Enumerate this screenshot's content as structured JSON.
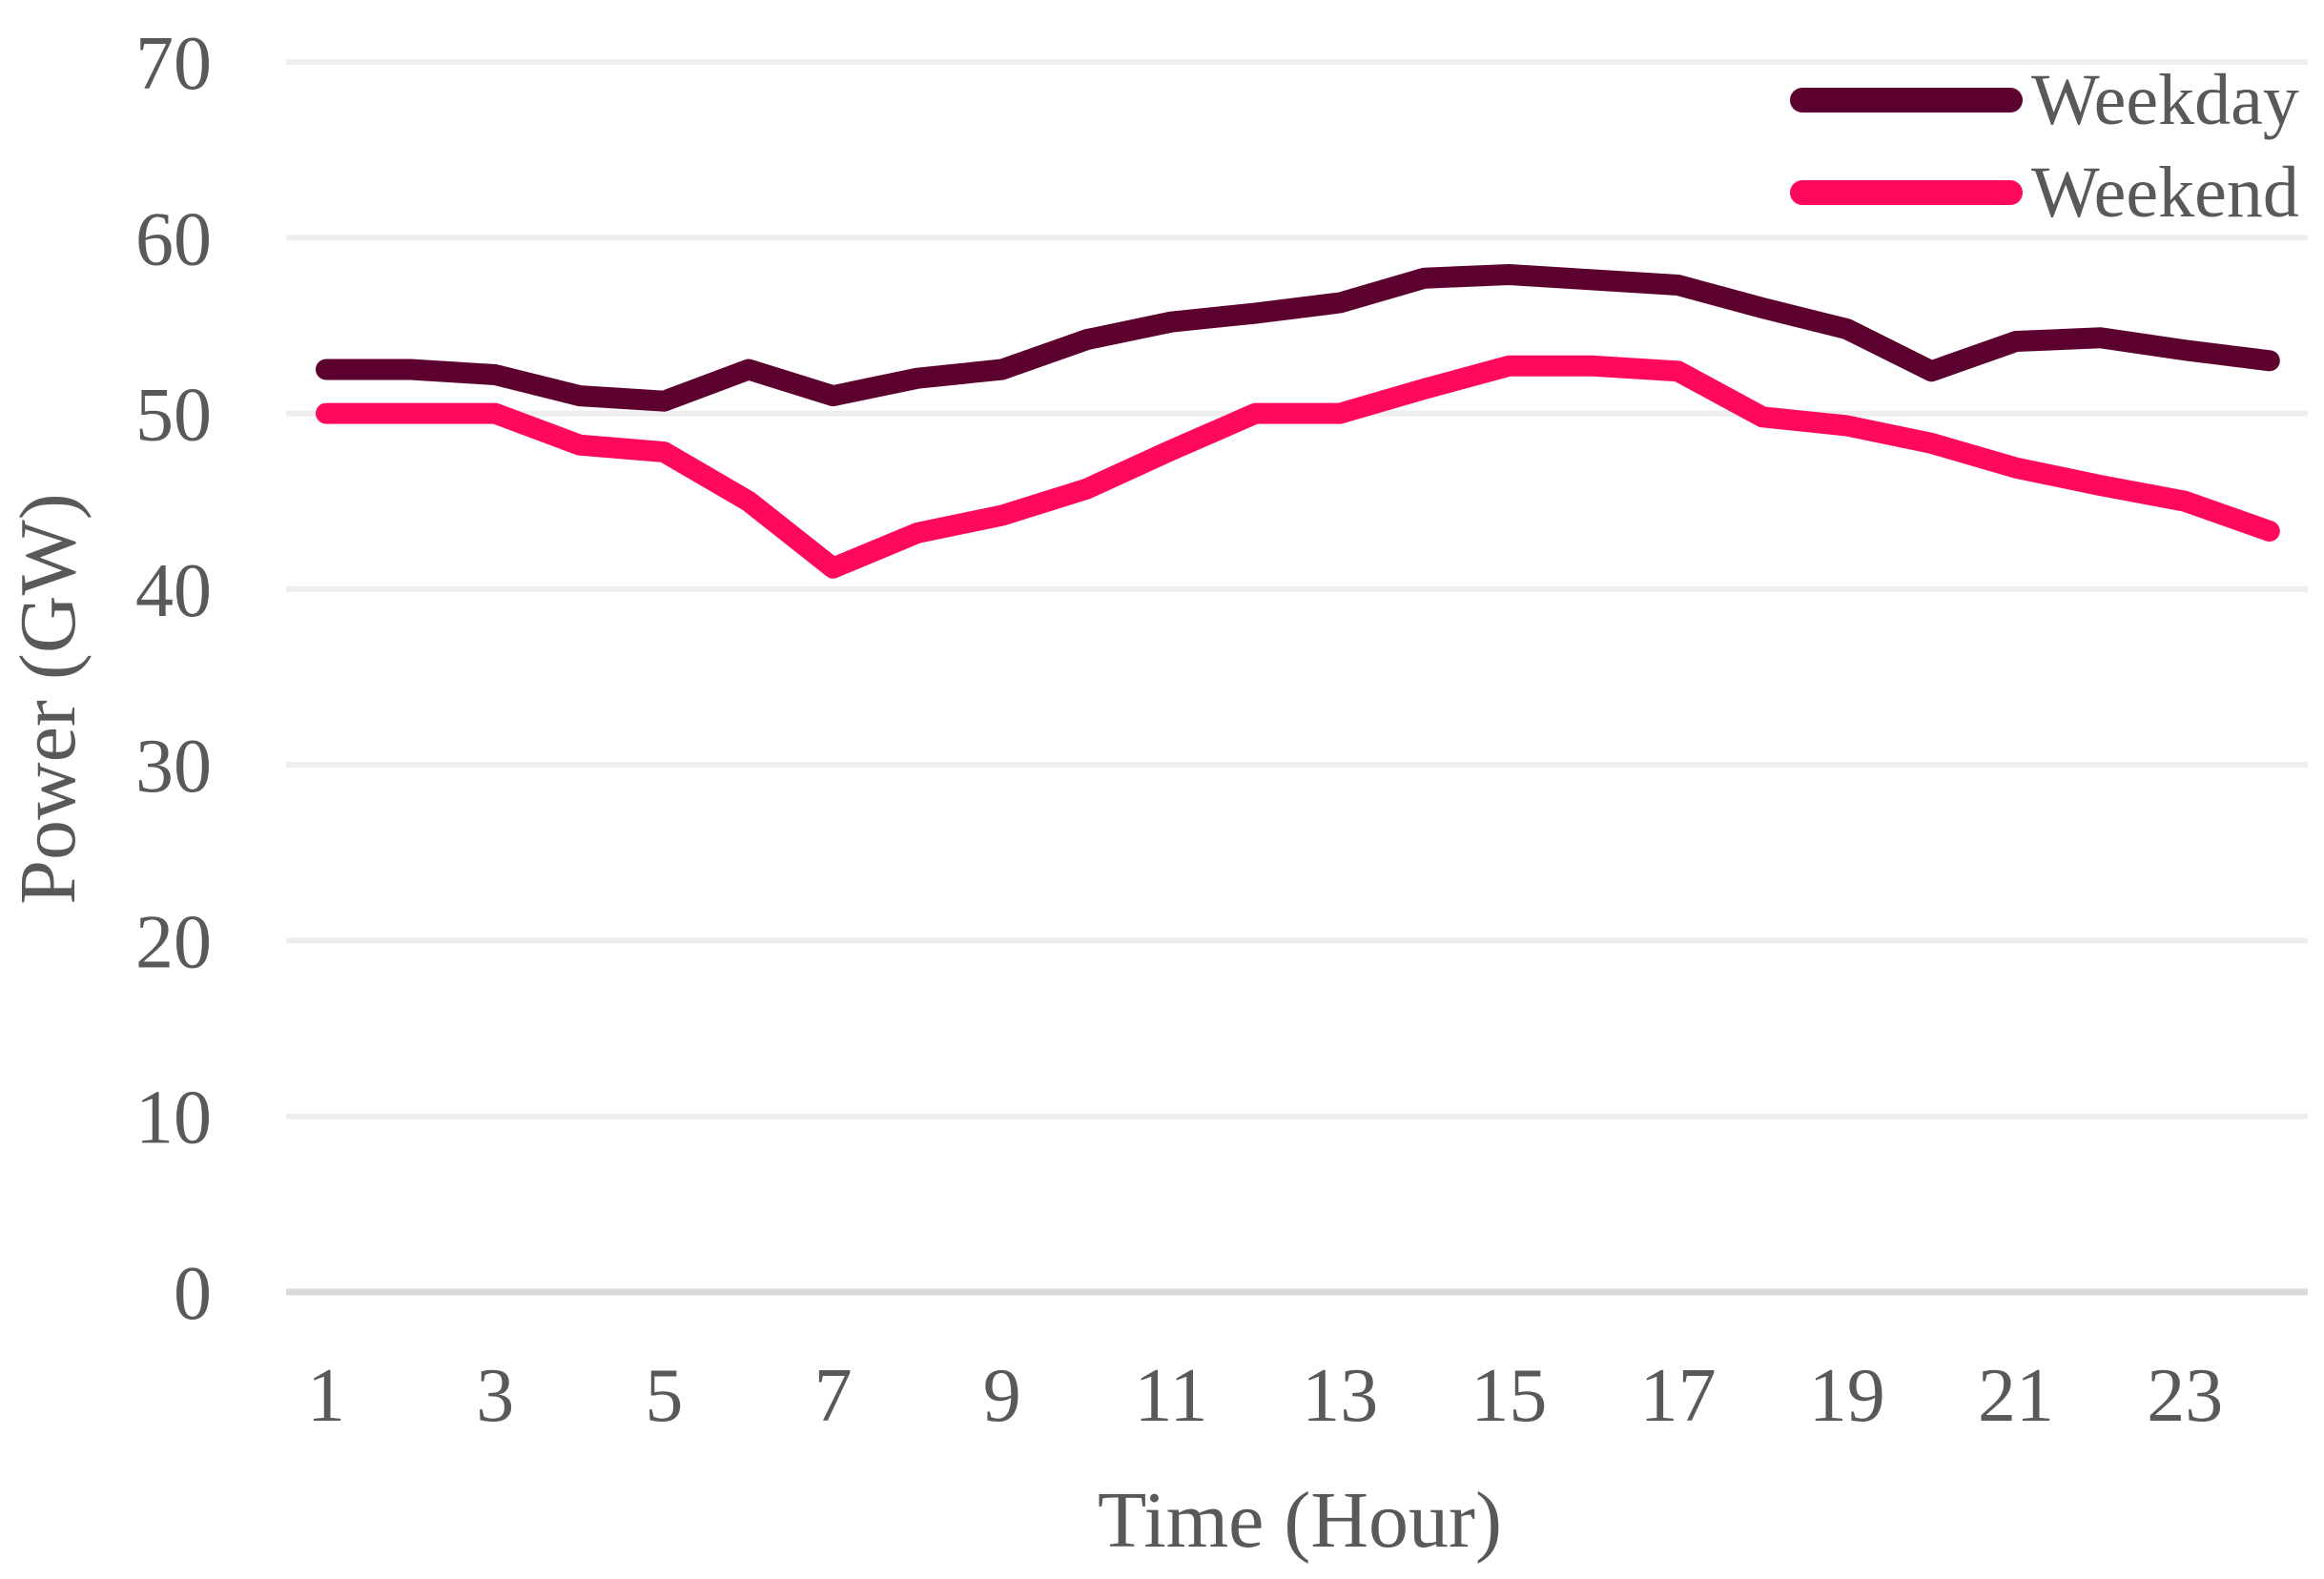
{
  "chart_data": {
    "type": "line",
    "title": "",
    "xlabel": "Time (Hour)",
    "ylabel": "Power (GW)",
    "x": [
      1,
      2,
      3,
      4,
      5,
      6,
      7,
      8,
      9,
      10,
      11,
      12,
      13,
      14,
      15,
      16,
      17,
      18,
      19,
      20,
      21,
      22,
      23,
      24
    ],
    "x_tick_labels": [
      "1",
      "3",
      "5",
      "7",
      "9",
      "11",
      "13",
      "15",
      "17",
      "19",
      "21",
      "23"
    ],
    "y_tick_labels": [
      "0",
      "10",
      "20",
      "30",
      "40",
      "50",
      "60",
      "70"
    ],
    "ylim": [
      0,
      70
    ],
    "grid": true,
    "legend_position": "top-right",
    "series": [
      {
        "name": "Weekday",
        "color": "#5c0030",
        "values": [
          52.5,
          52.5,
          52.2,
          51.0,
          50.7,
          52.5,
          51.0,
          52.0,
          52.5,
          54.2,
          55.2,
          55.7,
          56.3,
          57.7,
          57.9,
          57.6,
          57.3,
          56.0,
          54.8,
          52.4,
          54.1,
          54.3,
          53.6,
          53.0
        ]
      },
      {
        "name": "Weekend",
        "color": "#ff0a5a",
        "values": [
          50.0,
          50.0,
          50.0,
          48.2,
          47.8,
          45.0,
          41.2,
          43.2,
          44.2,
          45.7,
          47.9,
          50.0,
          50.0,
          51.4,
          52.7,
          52.7,
          52.4,
          49.8,
          49.3,
          48.3,
          46.9,
          45.9,
          45.0,
          43.3
        ]
      }
    ]
  }
}
